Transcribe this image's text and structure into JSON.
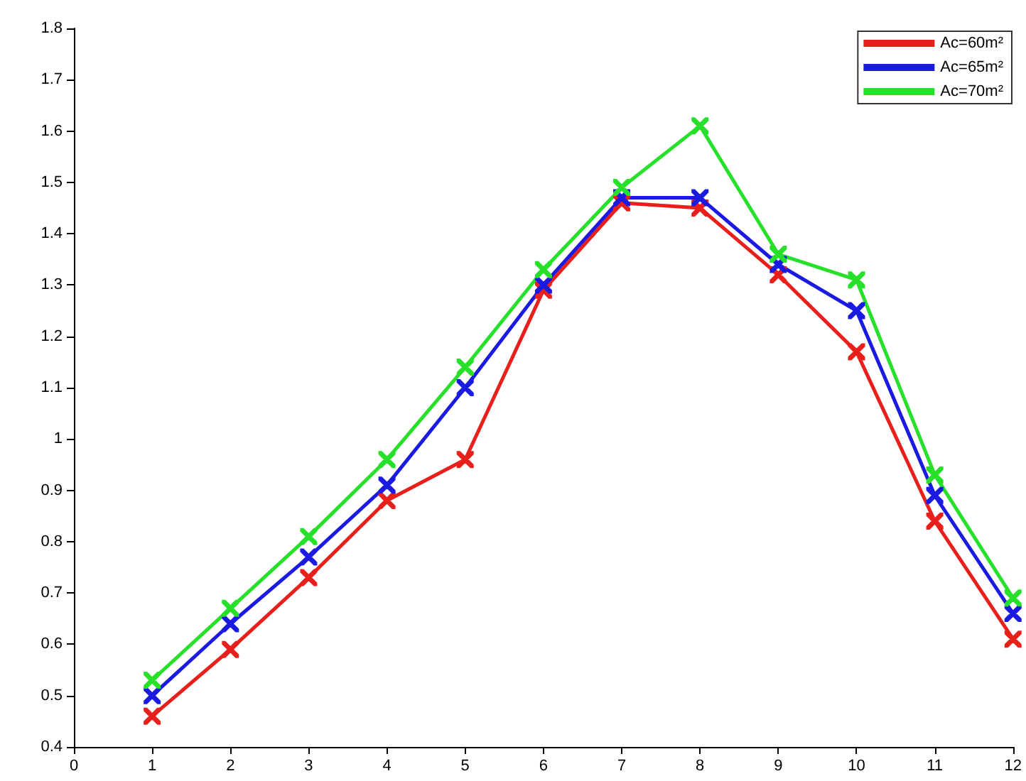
{
  "chart_data": {
    "type": "line",
    "x": [
      1,
      2,
      3,
      4,
      5,
      6,
      7,
      8,
      9,
      10,
      11,
      12
    ],
    "series": [
      {
        "name": "Ac=60m²",
        "color": "#e8201c",
        "values": [
          0.46,
          0.59,
          0.73,
          0.88,
          0.96,
          1.29,
          1.46,
          1.45,
          1.32,
          1.17,
          0.84,
          0.61
        ]
      },
      {
        "name": "Ac=65m²",
        "color": "#1a1ae0",
        "values": [
          0.5,
          0.64,
          0.77,
          0.91,
          1.1,
          1.3,
          1.47,
          1.47,
          1.34,
          1.25,
          0.89,
          0.66
        ]
      },
      {
        "name": "Ac=70m²",
        "color": "#27e02a",
        "values": [
          0.53,
          0.67,
          0.81,
          0.96,
          1.14,
          1.33,
          1.49,
          1.61,
          1.36,
          1.31,
          0.93,
          0.69
        ]
      }
    ],
    "xlim": [
      0,
      12
    ],
    "xticks": [
      0,
      1,
      2,
      3,
      4,
      5,
      6,
      7,
      8,
      9,
      10,
      11,
      12
    ],
    "ylim": [
      0.4,
      1.8
    ],
    "yticks": [
      0.4,
      0.5,
      0.6,
      0.7,
      0.8,
      0.9,
      1,
      1.1,
      1.2,
      1.3,
      1.4,
      1.5,
      1.6,
      1.7,
      1.8
    ],
    "grid": false,
    "legend": "top right",
    "marker": "cross",
    "line_style": "solid"
  }
}
